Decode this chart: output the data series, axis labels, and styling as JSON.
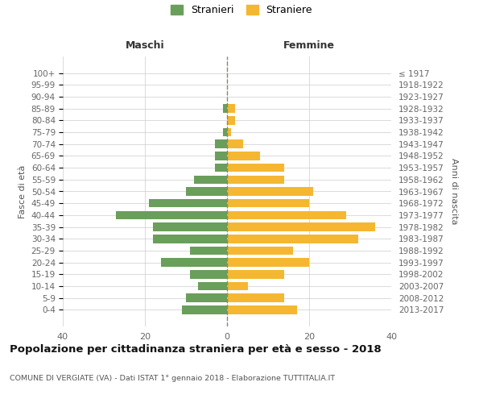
{
  "age_groups": [
    "100+",
    "95-99",
    "90-94",
    "85-89",
    "80-84",
    "75-79",
    "70-74",
    "65-69",
    "60-64",
    "55-59",
    "50-54",
    "45-49",
    "40-44",
    "35-39",
    "30-34",
    "25-29",
    "20-24",
    "15-19",
    "10-14",
    "5-9",
    "0-4"
  ],
  "birth_years": [
    "≤ 1917",
    "1918-1922",
    "1923-1927",
    "1928-1932",
    "1933-1937",
    "1938-1942",
    "1943-1947",
    "1948-1952",
    "1953-1957",
    "1958-1962",
    "1963-1967",
    "1968-1972",
    "1973-1977",
    "1978-1982",
    "1983-1987",
    "1988-1992",
    "1993-1997",
    "1998-2002",
    "2003-2007",
    "2008-2012",
    "2013-2017"
  ],
  "males": [
    0,
    0,
    0,
    1,
    0,
    1,
    3,
    3,
    3,
    8,
    10,
    19,
    27,
    18,
    18,
    9,
    16,
    9,
    7,
    10,
    11
  ],
  "females": [
    0,
    0,
    0,
    2,
    2,
    1,
    4,
    8,
    14,
    14,
    21,
    20,
    29,
    36,
    32,
    16,
    20,
    14,
    5,
    14,
    17
  ],
  "male_color": "#6a9e5b",
  "female_color": "#f5b731",
  "bg_color": "#ffffff",
  "grid_color": "#cccccc",
  "title": "Popolazione per cittadinanza straniera per età e sesso - 2018",
  "subtitle": "COMUNE DI VERGIATE (VA) - Dati ISTAT 1° gennaio 2018 - Elaborazione TUTTITALIA.IT",
  "header_left": "Maschi",
  "header_right": "Femmine",
  "ylabel_left": "Fasce di età",
  "ylabel_right": "Anni di nascita",
  "legend_male": "Stranieri",
  "legend_female": "Straniere",
  "xlim": 40
}
